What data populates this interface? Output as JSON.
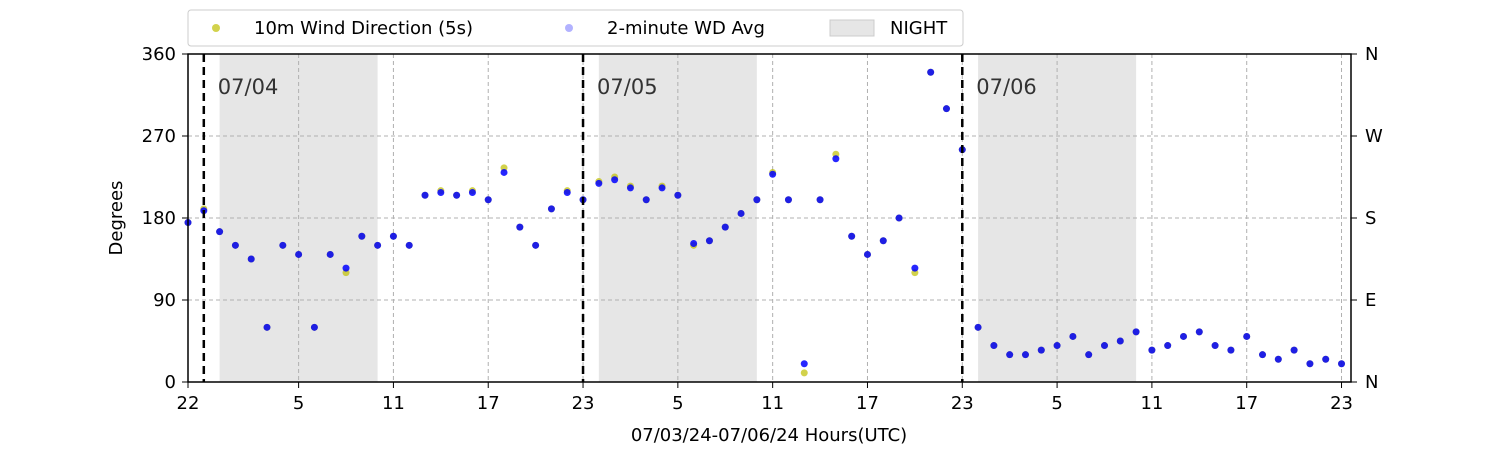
{
  "chart_data": {
    "type": "scatter",
    "xlabel": "07/03/24-07/06/24  Hours(UTC)",
    "ylabel": "Degrees",
    "ylim": [
      0,
      360
    ],
    "yticks": [
      0,
      90,
      180,
      270,
      360
    ],
    "right_ticks": [
      "N",
      "E",
      "S",
      "W",
      "N"
    ],
    "xlim": [
      22,
      95.6
    ],
    "xticks": [
      {
        "x": 22,
        "label": "22"
      },
      {
        "x": 29,
        "label": "5"
      },
      {
        "x": 35,
        "label": "11"
      },
      {
        "x": 41,
        "label": "17"
      },
      {
        "x": 47,
        "label": "23"
      },
      {
        "x": 53,
        "label": "5"
      },
      {
        "x": 59,
        "label": "11"
      },
      {
        "x": 65,
        "label": "17"
      },
      {
        "x": 71,
        "label": "23"
      },
      {
        "x": 77,
        "label": "5"
      },
      {
        "x": 83,
        "label": "11"
      },
      {
        "x": 89,
        "label": "17"
      },
      {
        "x": 95,
        "label": "23"
      }
    ],
    "grid": true,
    "legend_position": "top",
    "legend": [
      {
        "label": "10m Wind Direction (5s)",
        "color": "#bfbf00",
        "kind": "marker"
      },
      {
        "label": "2-minute WD Avg",
        "color": "#0000ff",
        "kind": "marker"
      },
      {
        "label": "NIGHT",
        "color": "#e6e6e6",
        "kind": "patch"
      }
    ],
    "day_boundaries": [
      {
        "x": 23,
        "label": "07/04"
      },
      {
        "x": 47,
        "label": "07/05"
      },
      {
        "x": 71,
        "label": "07/06"
      }
    ],
    "night_spans": [
      [
        24,
        34
      ],
      [
        48,
        58
      ],
      [
        72,
        82
      ]
    ],
    "series": [
      {
        "name": "10m Wind Direction (5s)",
        "color": "#bfbf00",
        "x": [
          22,
          23,
          24,
          25,
          26,
          27,
          28,
          29,
          30,
          31,
          32,
          33,
          34,
          35,
          36,
          37,
          38,
          39,
          40,
          41,
          42,
          43,
          44,
          45,
          46,
          47,
          48,
          49,
          50,
          51,
          52,
          53,
          54,
          55,
          56,
          57,
          58,
          59,
          60,
          61,
          62,
          63,
          64,
          65,
          66,
          67,
          68,
          69,
          70,
          71,
          72,
          73,
          74,
          75,
          76,
          77,
          78,
          79,
          80,
          81,
          82,
          83,
          84,
          85,
          86,
          87,
          88,
          89,
          90,
          91,
          92,
          93,
          94,
          95
        ],
        "y": [
          175,
          190,
          165,
          150,
          135,
          60,
          150,
          140,
          60,
          140,
          120,
          160,
          150,
          160,
          150,
          205,
          210,
          205,
          210,
          200,
          235,
          170,
          150,
          190,
          210,
          200,
          220,
          225,
          215,
          200,
          215,
          205,
          150,
          155,
          170,
          185,
          200,
          230,
          200,
          10,
          200,
          250,
          160,
          140,
          155,
          180,
          120,
          340,
          300,
          255,
          60,
          40,
          30,
          30,
          35,
          40,
          50,
          30,
          40,
          45,
          55,
          35,
          40,
          50,
          55,
          40,
          35,
          50,
          30,
          25,
          35,
          20,
          25,
          20
        ]
      },
      {
        "name": "2-minute WD Avg",
        "color": "#0000ff",
        "x": [
          22,
          23,
          24,
          25,
          26,
          27,
          28,
          29,
          30,
          31,
          32,
          33,
          34,
          35,
          36,
          37,
          38,
          39,
          40,
          41,
          42,
          43,
          44,
          45,
          46,
          47,
          48,
          49,
          50,
          51,
          52,
          53,
          54,
          55,
          56,
          57,
          58,
          59,
          60,
          61,
          62,
          63,
          64,
          65,
          66,
          67,
          68,
          69,
          70,
          71,
          72,
          73,
          74,
          75,
          76,
          77,
          78,
          79,
          80,
          81,
          82,
          83,
          84,
          85,
          86,
          87,
          88,
          89,
          90,
          91,
          92,
          93,
          94,
          95
        ],
        "y": [
          175,
          188,
          165,
          150,
          135,
          60,
          150,
          140,
          60,
          140,
          125,
          160,
          150,
          160,
          150,
          205,
          208,
          205,
          208,
          200,
          230,
          170,
          150,
          190,
          208,
          200,
          218,
          222,
          213,
          200,
          213,
          205,
          152,
          155,
          170,
          185,
          200,
          228,
          200,
          20,
          200,
          245,
          160,
          140,
          155,
          180,
          125,
          340,
          300,
          255,
          60,
          40,
          30,
          30,
          35,
          40,
          50,
          30,
          40,
          45,
          55,
          35,
          40,
          50,
          55,
          40,
          35,
          50,
          30,
          25,
          35,
          20,
          25,
          20
        ]
      }
    ]
  }
}
